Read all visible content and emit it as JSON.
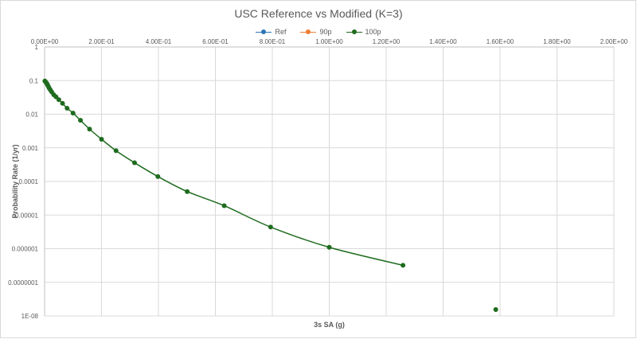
{
  "chart_data": {
    "type": "scatter",
    "title": "USC Reference vs Modified (K=3)",
    "xlabel": "3s SA (g)",
    "ylabel": "Probability Rate (1/yr)",
    "x_scale": "linear",
    "y_scale": "log",
    "xlim": [
      0,
      2.0
    ],
    "ylim": [
      1e-08,
      1
    ],
    "x_ticks": [
      0,
      0.2,
      0.4,
      0.6,
      0.8,
      1.0,
      1.2,
      1.4,
      1.6,
      1.8,
      2.0
    ],
    "x_tick_labels": [
      "0.00E+00",
      "2.00E-01",
      "4.00E-01",
      "6.00E-01",
      "8.00E-01",
      "1.00E+00",
      "1.20E+00",
      "1.40E+00",
      "1.60E+00",
      "1.80E+00",
      "2.00E+00"
    ],
    "y_ticks": [
      1,
      0.1,
      0.01,
      0.001,
      0.0001,
      1e-05,
      1e-06,
      1e-07,
      1e-08
    ],
    "y_tick_labels": [
      "1",
      "0.1",
      "0.01",
      "0.001",
      "0.0001",
      "0.00001",
      "0.000001",
      "0.0000001",
      "1E-08"
    ],
    "x_axis_position": "top",
    "grid": true,
    "legend_position": "top-center",
    "series": [
      {
        "name": "Ref",
        "color": "#2e75b6",
        "line": true,
        "x": [],
        "y": []
      },
      {
        "name": "90p",
        "color": "#ed7d31",
        "line": true,
        "x": [],
        "y": []
      },
      {
        "name": "100p",
        "color": "#1e6b1e",
        "line": true,
        "x": [
          0.001,
          0.003,
          0.005,
          0.008,
          0.01,
          0.013,
          0.016,
          0.02,
          0.025,
          0.032,
          0.04,
          0.05,
          0.063,
          0.079,
          0.1,
          0.126,
          0.158,
          0.2,
          0.251,
          0.316,
          0.398,
          0.501,
          0.631,
          0.794,
          1.0,
          1.259
        ],
        "y": [
          0.097,
          0.093,
          0.088,
          0.082,
          0.075,
          0.068,
          0.06,
          0.053,
          0.046,
          0.038,
          0.033,
          0.027,
          0.021,
          0.015,
          0.0108,
          0.0066,
          0.0036,
          0.0018,
          0.00082,
          0.00036,
          0.00014,
          5e-05,
          1.9e-05,
          4.4e-06,
          1.1e-06,
          3.2e-07
        ]
      },
      {
        "name": "100p",
        "color": "#1e6b1e",
        "line": false,
        "x": [
          1.585
        ],
        "y": [
          1.55e-08
        ]
      }
    ]
  }
}
